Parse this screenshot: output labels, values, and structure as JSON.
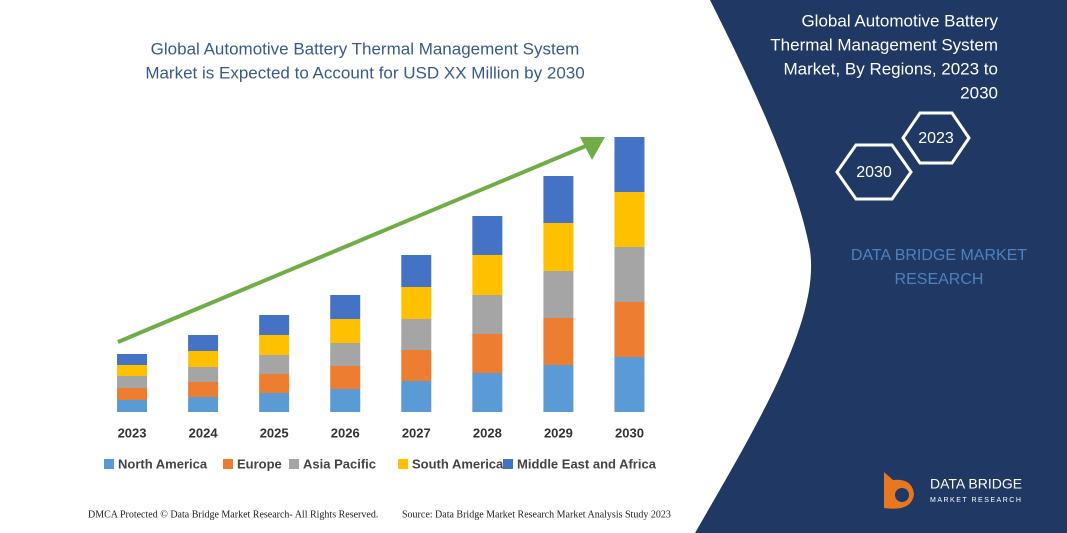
{
  "chart_data": {
    "type": "stacked_bar",
    "title_lines": [
      "Global Automotive Battery Thermal Management System",
      "Market is Expected to Account for USD XX Million by 2030"
    ],
    "categories": [
      "2023",
      "2024",
      "2025",
      "2026",
      "2027",
      "2028",
      "2029",
      "2030"
    ],
    "series": [
      {
        "name": "North America",
        "color": "#5b9bd5",
        "values": [
          12,
          15,
          19,
          23,
          31,
          39,
          47,
          55
        ]
      },
      {
        "name": "Europe",
        "color": "#ed7d31",
        "values": [
          12,
          15,
          19,
          23,
          31,
          39,
          47,
          55
        ]
      },
      {
        "name": "Asia Pacific",
        "color": "#a5a5a5",
        "values": [
          12,
          15,
          19,
          23,
          31,
          39,
          47,
          55
        ]
      },
      {
        "name": "South America",
        "color": "#ffc000",
        "values": [
          11,
          16,
          20,
          24,
          32,
          40,
          48,
          55
        ]
      },
      {
        "name": "Middle East and Africa",
        "color": "#4472c4",
        "values": [
          11,
          16,
          20,
          24,
          32,
          39,
          47,
          55
        ]
      }
    ],
    "ylim": [
      0,
      280
    ]
  },
  "panel": {
    "title_lines": [
      "Global Automotive Battery",
      "Thermal Management System",
      "Market, By Regions, 2023 to",
      "2030"
    ],
    "hex_labels": [
      "2023",
      "2030"
    ],
    "brand_lines": [
      "DATA BRIDGE MARKET",
      "RESEARCH"
    ],
    "logo_name": "DATA BRIDGE",
    "logo_sub": "MARKET RESEARCH"
  },
  "footer": {
    "left": "DMCA Protected © Data Bridge Market Research- All Rights Reserved.",
    "right": "Source: Data Bridge Market Research Market Analysis Study 2023"
  }
}
